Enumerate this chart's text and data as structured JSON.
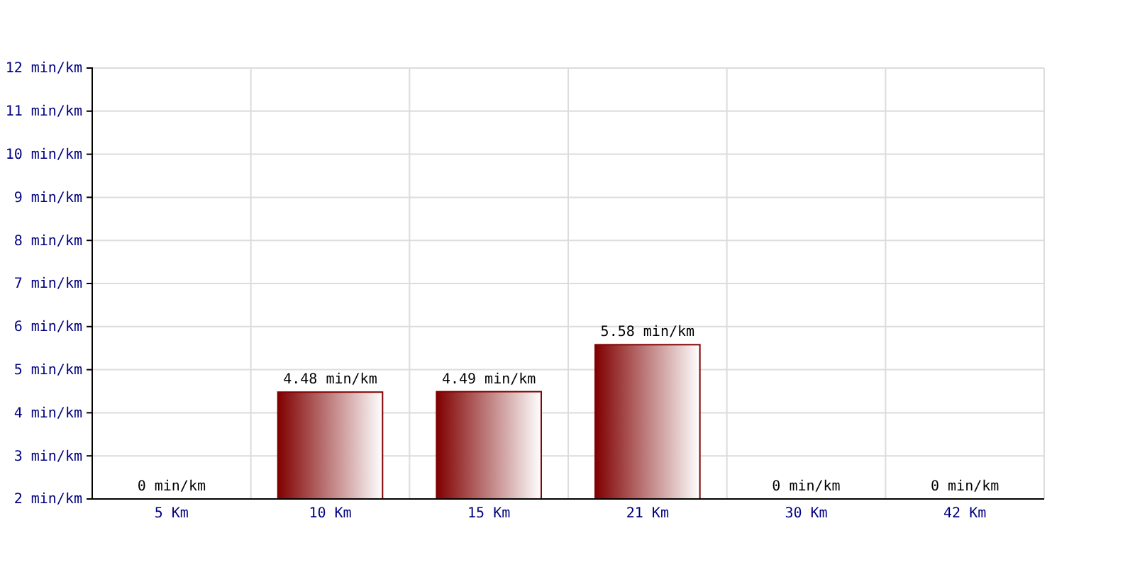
{
  "chart_data": {
    "type": "bar",
    "categories": [
      "5 Km",
      "10 Km",
      "15 Km",
      "21 Km",
      "30 Km",
      "42 Km"
    ],
    "values": [
      null,
      4.48,
      4.49,
      5.58,
      null,
      null
    ],
    "value_labels": [
      "0 min/km",
      "4.48 min/km",
      "4.49 min/km",
      "5.58 min/km",
      "0 min/km",
      "0 min/km"
    ],
    "color": "#800000",
    "ylim": [
      2,
      12
    ],
    "yticks": [
      {
        "value": 2,
        "label": "2 min/km"
      },
      {
        "value": 3,
        "label": "3 min/km"
      },
      {
        "value": 4,
        "label": "4 min/km"
      },
      {
        "value": 5,
        "label": "5 min/km"
      },
      {
        "value": 6,
        "label": "6 min/km"
      },
      {
        "value": 7,
        "label": "7 min/km"
      },
      {
        "value": 8,
        "label": "8 min/km"
      },
      {
        "value": 9,
        "label": "9 min/km"
      },
      {
        "value": 10,
        "label": "10 min/km"
      },
      {
        "value": 11,
        "label": "11 min/km"
      },
      {
        "value": 12,
        "label": "12 min/km"
      }
    ],
    "grid": true
  }
}
